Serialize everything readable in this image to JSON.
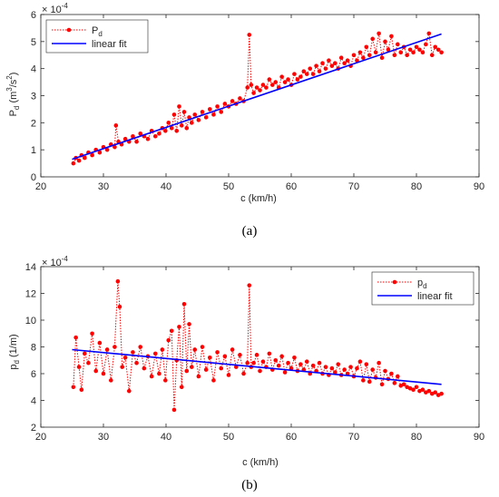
{
  "chart_data": [
    {
      "type": "line",
      "caption": "(a)",
      "xlabel": "c (km/h)",
      "ylabel_base": "P",
      "ylabel_sub": "d",
      "ylabel_unit": " (m",
      "ylabel_exp": "3",
      "ylabel_tail": "/s",
      "ylabel_exp2": "2",
      "ylabel_close": ")",
      "exponent_label": "× 10",
      "exponent_power": "-4",
      "xlim": [
        20,
        90
      ],
      "ylim": [
        0,
        6
      ],
      "xticks": [
        20,
        30,
        40,
        50,
        60,
        70,
        80,
        90
      ],
      "yticks": [
        0,
        1,
        2,
        3,
        4,
        5,
        6
      ],
      "grid": false,
      "legend_position": "top-left",
      "series": [
        {
          "name": "P",
          "name_sub": "d",
          "style": "dotted-with-markers",
          "color": "#ff0000",
          "x": [
            25.2,
            25.6,
            26.1,
            26.5,
            27.0,
            27.6,
            28.2,
            28.8,
            29.4,
            30.0,
            30.6,
            31.2,
            31.8,
            32.0,
            32.4,
            32.9,
            33.5,
            34.1,
            34.7,
            35.3,
            35.9,
            36.5,
            37.1,
            37.7,
            38.3,
            38.9,
            39.4,
            39.9,
            40.4,
            40.9,
            41.3,
            41.7,
            42.1,
            42.5,
            42.9,
            43.3,
            43.7,
            44.1,
            44.6,
            45.2,
            45.8,
            46.4,
            47.0,
            47.6,
            48.2,
            48.8,
            49.4,
            50.0,
            50.6,
            51.2,
            51.8,
            52.4,
            53.0,
            53.3,
            53.6,
            54.0,
            54.5,
            55.0,
            55.5,
            56.0,
            56.5,
            57.0,
            57.5,
            58.0,
            58.5,
            59.0,
            59.5,
            60.0,
            60.5,
            61.0,
            61.5,
            62.0,
            62.5,
            63.0,
            63.5,
            64.0,
            64.5,
            65.0,
            65.5,
            66.0,
            66.5,
            67.0,
            67.5,
            68.0,
            68.5,
            69.0,
            69.5,
            70.0,
            70.5,
            71.0,
            71.5,
            72.0,
            72.5,
            73.0,
            73.5,
            74.0,
            74.5,
            75.0,
            75.5,
            76.0,
            76.5,
            77.0,
            77.5,
            78.0,
            78.5,
            79.0,
            79.5,
            80.0,
            80.5,
            81.0,
            81.5,
            82.0,
            82.5,
            83.0,
            83.5,
            84.0
          ],
          "y": [
            0.5,
            0.7,
            0.6,
            0.8,
            0.7,
            0.9,
            0.8,
            1.0,
            0.9,
            1.1,
            1.0,
            1.2,
            1.1,
            1.9,
            1.3,
            1.2,
            1.4,
            1.3,
            1.5,
            1.3,
            1.6,
            1.5,
            1.4,
            1.7,
            1.5,
            1.6,
            1.8,
            1.7,
            2.0,
            1.8,
            2.3,
            1.7,
            2.6,
            1.9,
            2.4,
            1.8,
            2.2,
            2.0,
            2.3,
            2.1,
            2.4,
            2.2,
            2.5,
            2.3,
            2.6,
            2.4,
            2.7,
            2.6,
            2.8,
            2.7,
            2.9,
            2.8,
            3.3,
            5.25,
            3.4,
            3.1,
            3.3,
            3.2,
            3.4,
            3.3,
            3.6,
            3.4,
            3.5,
            3.3,
            3.7,
            3.5,
            3.6,
            3.4,
            3.8,
            3.6,
            3.7,
            3.9,
            3.8,
            4.0,
            3.8,
            4.1,
            3.9,
            4.2,
            4.0,
            4.3,
            4.1,
            4.2,
            4.0,
            4.4,
            4.2,
            4.3,
            4.1,
            4.5,
            4.3,
            4.6,
            4.4,
            4.8,
            4.5,
            5.1,
            4.6,
            5.3,
            4.4,
            5.0,
            4.7,
            5.2,
            4.5,
            4.9,
            4.6,
            4.8,
            4.5,
            4.7,
            4.6,
            4.8,
            4.7,
            4.6,
            4.9,
            5.3,
            4.5,
            4.8,
            4.7,
            4.6
          ]
        },
        {
          "name": "linear fit",
          "style": "solid",
          "color": "#0000ff",
          "x": [
            25,
            84
          ],
          "y": [
            0.65,
            5.28
          ]
        }
      ]
    },
    {
      "type": "line",
      "caption": "(b)",
      "xlabel": "c (km/h)",
      "ylabel_base": "p",
      "ylabel_sub": "d",
      "ylabel_unit": " (1/m)",
      "exponent_label": "× 10",
      "exponent_power": "-4",
      "xlim": [
        20,
        90
      ],
      "ylim": [
        2,
        14
      ],
      "xticks": [
        20,
        30,
        40,
        50,
        60,
        70,
        80,
        90
      ],
      "yticks": [
        2,
        4,
        6,
        8,
        10,
        12,
        14
      ],
      "grid": false,
      "legend_position": "top-right",
      "series": [
        {
          "name": "p",
          "name_sub": "d",
          "style": "dotted-with-markers",
          "color": "#ff0000",
          "x": [
            25.2,
            25.6,
            26.1,
            26.5,
            27.0,
            27.6,
            28.2,
            28.8,
            29.4,
            30.0,
            30.6,
            31.2,
            31.8,
            32.3,
            32.6,
            33.0,
            33.5,
            34.1,
            34.7,
            35.3,
            35.9,
            36.5,
            37.1,
            37.7,
            38.3,
            38.9,
            39.4,
            39.9,
            40.4,
            40.9,
            41.3,
            41.7,
            42.1,
            42.5,
            42.9,
            43.3,
            43.7,
            44.1,
            44.6,
            45.2,
            45.8,
            46.4,
            47.0,
            47.6,
            48.2,
            48.8,
            49.4,
            50.0,
            50.6,
            51.2,
            51.8,
            52.4,
            53.0,
            53.3,
            53.6,
            54.0,
            54.5,
            55.0,
            55.5,
            56.0,
            56.5,
            57.0,
            57.5,
            58.0,
            58.5,
            59.0,
            59.5,
            60.0,
            60.5,
            61.0,
            61.5,
            62.0,
            62.5,
            63.0,
            63.5,
            64.0,
            64.5,
            65.0,
            65.5,
            66.0,
            66.5,
            67.0,
            67.5,
            68.0,
            68.5,
            69.0,
            69.5,
            70.0,
            70.5,
            71.0,
            71.5,
            72.0,
            72.5,
            73.0,
            73.5,
            74.0,
            74.5,
            75.0,
            75.5,
            76.0,
            76.5,
            77.0,
            77.5,
            78.0,
            78.5,
            79.0,
            79.5,
            80.0,
            80.5,
            81.0,
            81.5,
            82.0,
            82.5,
            83.0,
            83.5,
            84.0
          ],
          "y": [
            5.0,
            8.7,
            6.5,
            4.8,
            7.5,
            6.8,
            9.0,
            6.2,
            8.3,
            6.0,
            7.8,
            5.5,
            8.0,
            12.9,
            11.0,
            6.5,
            7.2,
            4.7,
            7.6,
            6.8,
            8.0,
            6.4,
            7.3,
            5.8,
            7.5,
            6.0,
            7.8,
            5.5,
            8.5,
            9.2,
            3.3,
            7.0,
            9.5,
            5.0,
            11.2,
            6.2,
            9.7,
            6.5,
            7.8,
            5.8,
            8.0,
            6.3,
            7.2,
            5.5,
            7.6,
            6.4,
            7.3,
            5.9,
            7.8,
            6.5,
            7.4,
            6.0,
            6.8,
            12.6,
            6.5,
            6.8,
            7.4,
            6.2,
            6.9,
            6.5,
            7.5,
            6.3,
            7.0,
            6.6,
            7.3,
            6.1,
            6.8,
            6.4,
            7.2,
            6.2,
            6.7,
            6.3,
            6.9,
            6.0,
            6.6,
            6.2,
            6.8,
            6.0,
            6.5,
            5.9,
            6.4,
            6.1,
            6.7,
            5.9,
            6.3,
            6.0,
            6.5,
            5.8,
            6.4,
            6.9,
            5.5,
            6.7,
            5.4,
            6.3,
            5.7,
            6.8,
            5.2,
            6.2,
            5.6,
            6.0,
            5.3,
            5.8,
            5.1,
            5.2,
            5.0,
            4.9,
            4.8,
            5.0,
            4.7,
            4.8,
            4.6,
            4.7,
            4.5,
            4.6,
            4.4,
            4.5
          ]
        },
        {
          "name": "linear fit",
          "style": "solid",
          "color": "#0000ff",
          "x": [
            25,
            84
          ],
          "y": [
            7.8,
            5.2
          ]
        }
      ]
    }
  ]
}
